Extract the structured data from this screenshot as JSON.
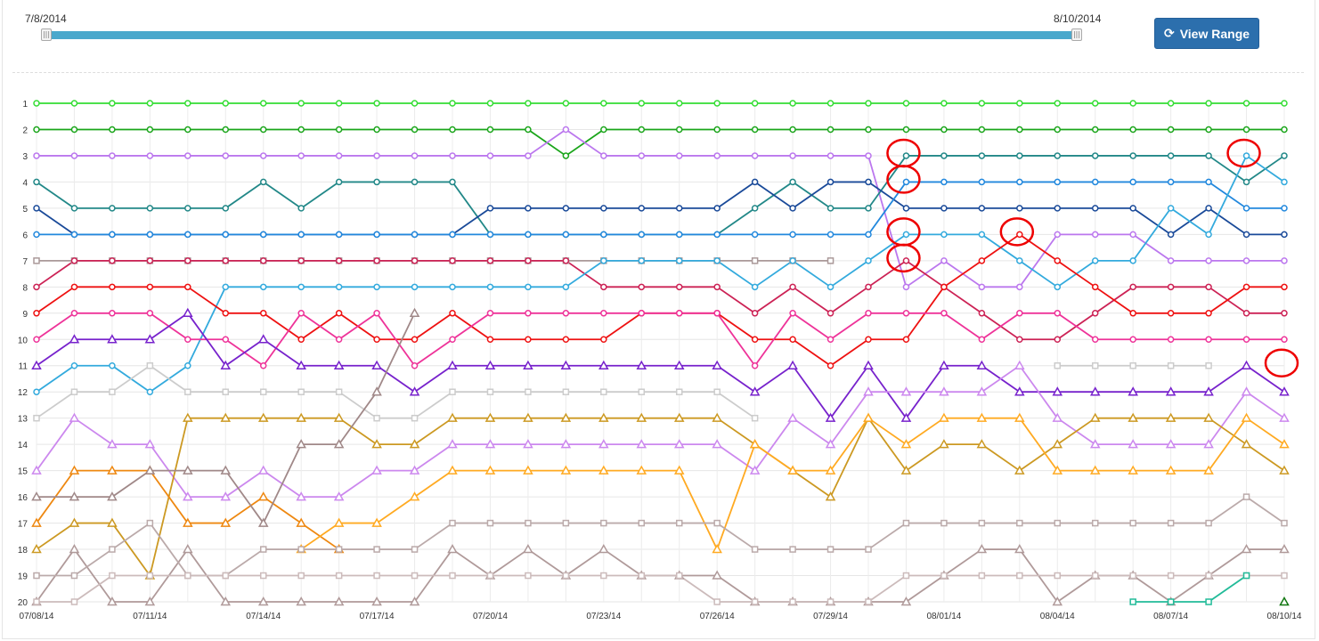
{
  "range_slider": {
    "start_label": "7/8/2014",
    "end_label": "8/10/2014",
    "handle_glyph": "|||"
  },
  "view_button": {
    "label": "View Range",
    "icon": "refresh-icon"
  },
  "chart_data": {
    "type": "line",
    "title": "",
    "xlabel": "",
    "ylabel": "",
    "y_axis": "rank (1 at top)",
    "ylim": [
      1,
      20
    ],
    "y_ticks": [
      "1",
      "2",
      "3",
      "4",
      "5",
      "6",
      "7",
      "8",
      "9",
      "10",
      "11",
      "12",
      "13",
      "14",
      "15",
      "16",
      "17",
      "18",
      "19",
      "20"
    ],
    "x_ticks": [
      "07/08/14",
      "07/11/14",
      "07/14/14",
      "07/17/14",
      "07/20/14",
      "07/23/14",
      "07/26/14",
      "07/29/14",
      "08/01/14",
      "08/04/14",
      "08/07/14",
      "08/10/14"
    ],
    "x": [
      "07/08",
      "07/09",
      "07/10",
      "07/11",
      "07/12",
      "07/13",
      "07/14",
      "07/15",
      "07/16",
      "07/17",
      "07/18",
      "07/19",
      "07/20",
      "07/21",
      "07/22",
      "07/23",
      "07/24",
      "07/25",
      "07/26",
      "07/27",
      "07/28",
      "07/29",
      "07/30",
      "07/31",
      "08/01",
      "08/02",
      "08/03",
      "08/04",
      "08/05",
      "08/06",
      "08/07",
      "08/08",
      "08/09",
      "08/10"
    ],
    "grid": true,
    "legend": "none",
    "series": [
      {
        "color": "#33dd33",
        "marker": "circle",
        "values": [
          1,
          1,
          1,
          1,
          1,
          1,
          1,
          1,
          1,
          1,
          1,
          1,
          1,
          1,
          1,
          1,
          1,
          1,
          1,
          1,
          1,
          1,
          1,
          1,
          1,
          1,
          1,
          1,
          1,
          1,
          1,
          1,
          1,
          1
        ]
      },
      {
        "color": "#1aa51a",
        "marker": "circle",
        "values": [
          2,
          2,
          2,
          2,
          2,
          2,
          2,
          2,
          2,
          2,
          2,
          2,
          2,
          2,
          3,
          2,
          2,
          2,
          2,
          2,
          2,
          2,
          2,
          2,
          2,
          2,
          2,
          2,
          2,
          2,
          2,
          2,
          2,
          2
        ]
      },
      {
        "color": "#bb77ee",
        "marker": "circle",
        "values": [
          3,
          3,
          3,
          3,
          3,
          3,
          3,
          3,
          3,
          3,
          3,
          3,
          3,
          3,
          2,
          3,
          3,
          3,
          3,
          3,
          3,
          3,
          3,
          8,
          7,
          8,
          8,
          6,
          6,
          6,
          7,
          7,
          7,
          7
        ]
      },
      {
        "color": "#228888",
        "marker": "circle",
        "values": [
          4,
          5,
          5,
          5,
          5,
          5,
          4,
          5,
          4,
          4,
          4,
          4,
          6,
          6,
          6,
          6,
          6,
          6,
          6,
          5,
          4,
          5,
          5,
          3,
          3,
          3,
          3,
          3,
          3,
          3,
          3,
          3,
          4,
          3
        ]
      },
      {
        "color": "#1a4a99",
        "marker": "circle",
        "values": [
          5,
          6,
          6,
          6,
          6,
          6,
          6,
          6,
          6,
          6,
          6,
          6,
          5,
          5,
          5,
          5,
          5,
          5,
          5,
          4,
          5,
          4,
          4,
          5,
          5,
          5,
          5,
          5,
          5,
          5,
          6,
          5,
          6,
          6
        ]
      },
      {
        "color": "#2288dd",
        "marker": "circle",
        "values": [
          6,
          6,
          6,
          6,
          6,
          6,
          6,
          6,
          6,
          6,
          6,
          6,
          6,
          6,
          6,
          6,
          6,
          6,
          6,
          6,
          6,
          6,
          6,
          4,
          4,
          4,
          4,
          4,
          4,
          4,
          4,
          4,
          5,
          5
        ]
      },
      {
        "color": "#aa9999",
        "marker": "square",
        "values": [
          7,
          7,
          7,
          7,
          7,
          7,
          7,
          7,
          7,
          7,
          7,
          7,
          7,
          7,
          7,
          7,
          7,
          7,
          7,
          7,
          7,
          7,
          null,
          null,
          null,
          null,
          null,
          null,
          null,
          null,
          null,
          null,
          null,
          null
        ]
      },
      {
        "color": "#cc2255",
        "marker": "circle",
        "values": [
          8,
          7,
          7,
          7,
          7,
          7,
          7,
          7,
          7,
          7,
          7,
          7,
          7,
          7,
          7,
          8,
          8,
          8,
          8,
          9,
          8,
          9,
          8,
          7,
          8,
          9,
          10,
          10,
          9,
          8,
          8,
          8,
          9,
          9
        ]
      },
      {
        "color": "#33aadd",
        "marker": "circle",
        "values": [
          12,
          11,
          11,
          12,
          11,
          8,
          8,
          8,
          8,
          8,
          8,
          8,
          8,
          8,
          8,
          7,
          7,
          7,
          7,
          8,
          7,
          8,
          7,
          6,
          6,
          6,
          7,
          8,
          7,
          7,
          5,
          6,
          3,
          4
        ]
      },
      {
        "color": "#ee1111",
        "marker": "circle",
        "values": [
          9,
          8,
          8,
          8,
          8,
          9,
          9,
          10,
          9,
          10,
          10,
          9,
          10,
          10,
          10,
          10,
          9,
          9,
          9,
          10,
          10,
          11,
          10,
          10,
          8,
          7,
          6,
          7,
          8,
          9,
          9,
          9,
          8,
          8
        ]
      },
      {
        "color": "#ee3399",
        "marker": "circle",
        "values": [
          10,
          9,
          9,
          9,
          10,
          10,
          11,
          9,
          10,
          9,
          11,
          10,
          9,
          9,
          9,
          9,
          9,
          9,
          9,
          11,
          9,
          10,
          9,
          9,
          9,
          10,
          9,
          9,
          10,
          10,
          10,
          10,
          10,
          10
        ]
      },
      {
        "color": "#7722cc",
        "marker": "triangle",
        "values": [
          11,
          10,
          10,
          10,
          9,
          11,
          10,
          11,
          11,
          11,
          12,
          11,
          11,
          11,
          11,
          11,
          11,
          11,
          11,
          12,
          11,
          13,
          11,
          13,
          11,
          11,
          12,
          12,
          12,
          12,
          12,
          12,
          11,
          12
        ]
      },
      {
        "color": "#cccccc",
        "marker": "square",
        "values": [
          13,
          12,
          12,
          11,
          12,
          12,
          12,
          12,
          12,
          13,
          13,
          12,
          12,
          12,
          12,
          12,
          12,
          12,
          12,
          13,
          null,
          null,
          null,
          null,
          null,
          null,
          null,
          11,
          11,
          11,
          11,
          11,
          null,
          null
        ]
      },
      {
        "color": "#cc88ee",
        "marker": "triangle",
        "values": [
          15,
          13,
          14,
          14,
          16,
          16,
          15,
          16,
          16,
          15,
          15,
          14,
          14,
          14,
          14,
          14,
          14,
          14,
          14,
          15,
          13,
          14,
          12,
          12,
          12,
          12,
          11,
          13,
          14,
          14,
          14,
          14,
          12,
          13
        ]
      },
      {
        "color": "#cc9922",
        "marker": "triangle",
        "values": [
          18,
          17,
          17,
          19,
          13,
          13,
          13,
          13,
          13,
          14,
          14,
          13,
          13,
          13,
          13,
          13,
          13,
          13,
          13,
          14,
          15,
          16,
          13,
          15,
          14,
          14,
          15,
          14,
          13,
          13,
          13,
          13,
          14,
          15
        ]
      },
      {
        "color": "#ee8811",
        "marker": "triangle",
        "values": [
          17,
          15,
          15,
          15,
          17,
          17,
          16,
          17,
          18,
          null,
          null,
          null,
          null,
          null,
          null,
          null,
          null,
          null,
          null,
          null,
          null,
          null,
          null,
          null,
          null,
          null,
          null,
          null,
          null,
          null,
          null,
          null,
          null,
          null
        ]
      },
      {
        "color": "#ffaa22",
        "marker": "triangle",
        "values": [
          null,
          null,
          null,
          null,
          null,
          null,
          null,
          18,
          17,
          17,
          16,
          15,
          15,
          15,
          15,
          15,
          15,
          15,
          18,
          14,
          15,
          15,
          13,
          14,
          13,
          13,
          13,
          15,
          15,
          15,
          15,
          15,
          13,
          14
        ]
      },
      {
        "color": "#a08888",
        "marker": "triangle",
        "values": [
          16,
          16,
          16,
          15,
          15,
          15,
          17,
          14,
          14,
          12,
          9,
          null,
          null,
          null,
          null,
          null,
          null,
          null,
          null,
          null,
          null,
          null,
          null,
          null,
          null,
          null,
          null,
          null,
          null,
          null,
          null,
          null,
          null,
          null
        ]
      },
      {
        "color": "#b09a9a",
        "marker": "triangle",
        "values": [
          20,
          18,
          20,
          20,
          18,
          20,
          20,
          20,
          20,
          20,
          20,
          18,
          19,
          18,
          19,
          18,
          19,
          19,
          19,
          20,
          20,
          20,
          20,
          20,
          19,
          18,
          18,
          20,
          19,
          19,
          20,
          19,
          18,
          18
        ]
      },
      {
        "color": "#bbaaaa",
        "marker": "square",
        "values": [
          19,
          19,
          18,
          17,
          19,
          19,
          18,
          18,
          18,
          18,
          18,
          17,
          17,
          17,
          17,
          17,
          17,
          17,
          17,
          18,
          18,
          18,
          18,
          17,
          17,
          17,
          17,
          17,
          17,
          17,
          17,
          17,
          16,
          17
        ]
      },
      {
        "color": "#ccbbbb",
        "marker": "square",
        "values": [
          20,
          20,
          19,
          19,
          19,
          19,
          19,
          19,
          19,
          19,
          19,
          19,
          19,
          19,
          19,
          19,
          19,
          19,
          20,
          20,
          20,
          20,
          20,
          19,
          19,
          19,
          19,
          19,
          19,
          19,
          19,
          19,
          19,
          19
        ]
      },
      {
        "color": "#22bb99",
        "marker": "square",
        "values": [
          null,
          null,
          null,
          null,
          null,
          null,
          null,
          null,
          null,
          null,
          null,
          null,
          null,
          null,
          null,
          null,
          null,
          null,
          null,
          null,
          null,
          null,
          null,
          null,
          null,
          null,
          null,
          null,
          null,
          20,
          20,
          20,
          19,
          null
        ]
      },
      {
        "color": "#117711",
        "marker": "triangle",
        "values": [
          null,
          null,
          null,
          null,
          null,
          null,
          null,
          null,
          null,
          null,
          null,
          null,
          null,
          null,
          null,
          null,
          null,
          null,
          null,
          null,
          null,
          null,
          null,
          null,
          null,
          null,
          null,
          null,
          null,
          null,
          null,
          null,
          null,
          20
        ]
      }
    ],
    "annotations": [
      {
        "type": "circle",
        "color": "#ee0000",
        "x": "07/31",
        "y": 3
      },
      {
        "type": "circle",
        "color": "#ee0000",
        "x": "07/31",
        "y": 4
      },
      {
        "type": "circle",
        "color": "#ee0000",
        "x": "07/31",
        "y": 6
      },
      {
        "type": "circle",
        "color": "#ee0000",
        "x": "07/31",
        "y": 7
      },
      {
        "type": "circle",
        "color": "#ee0000",
        "x": "08/03",
        "y": 6
      },
      {
        "type": "circle",
        "color": "#ee0000",
        "x": "08/09",
        "y": 3
      },
      {
        "type": "circle",
        "color": "#ee0000",
        "x": "08/10",
        "y": 11
      }
    ]
  }
}
